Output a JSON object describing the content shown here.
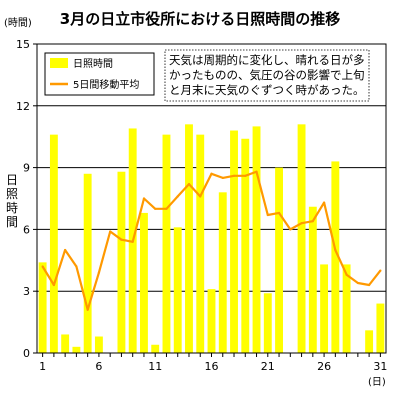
{
  "chart_data": {
    "type": "bar",
    "title": "3月の日立市役所における日照時間の推移",
    "y_unit": "(時間)",
    "x_unit": "(日)",
    "ylabel": "日照時間",
    "ylim": [
      0,
      15
    ],
    "yticks": [
      0,
      3,
      6,
      9,
      12,
      15
    ],
    "xlim": [
      1,
      31
    ],
    "xticks": [
      1,
      6,
      11,
      16,
      21,
      26,
      31
    ],
    "grid": "horizontal",
    "legend_placement": "top-left",
    "annotation": [
      "天気は周期的に変化し、晴れる日が多",
      "かったものの、気圧の谷の影響で上旬",
      "と月末に天気のぐずつく時があった。"
    ],
    "colors": {
      "bar": "#ffff00",
      "line": "#ff9900",
      "grid": "#000000"
    },
    "series": [
      {
        "name": "日照時間",
        "type": "bar",
        "x": [
          1,
          2,
          3,
          4,
          5,
          6,
          7,
          8,
          9,
          10,
          11,
          12,
          13,
          14,
          15,
          16,
          17,
          18,
          19,
          20,
          21,
          22,
          23,
          24,
          25,
          26,
          27,
          28,
          29,
          30,
          31
        ],
        "values": [
          4.4,
          10.6,
          0.9,
          0.3,
          8.7,
          0.8,
          0.0,
          8.8,
          10.9,
          6.8,
          0.4,
          10.6,
          6.1,
          11.1,
          10.6,
          3.1,
          7.8,
          10.8,
          10.4,
          11.0,
          2.9,
          9.0,
          0.0,
          11.1,
          7.1,
          4.3,
          9.3,
          4.3,
          0.0,
          1.1,
          2.4
        ]
      },
      {
        "name": "5日間移動平均",
        "type": "line",
        "x": [
          1,
          2,
          3,
          4,
          5,
          6,
          7,
          8,
          9,
          10,
          11,
          12,
          13,
          14,
          15,
          16,
          17,
          18,
          19,
          20,
          21,
          22,
          23,
          24,
          25,
          26,
          27,
          28,
          29,
          30,
          31
        ],
        "values": [
          4.2,
          3.3,
          5.0,
          4.2,
          2.1,
          3.9,
          5.9,
          5.5,
          5.4,
          7.5,
          7.0,
          7.0,
          7.6,
          8.2,
          7.6,
          8.7,
          8.5,
          8.6,
          8.6,
          8.8,
          6.7,
          6.8,
          6.0,
          6.3,
          6.4,
          7.3,
          5.0,
          3.8,
          3.4,
          3.3,
          4.0
        ]
      }
    ]
  }
}
